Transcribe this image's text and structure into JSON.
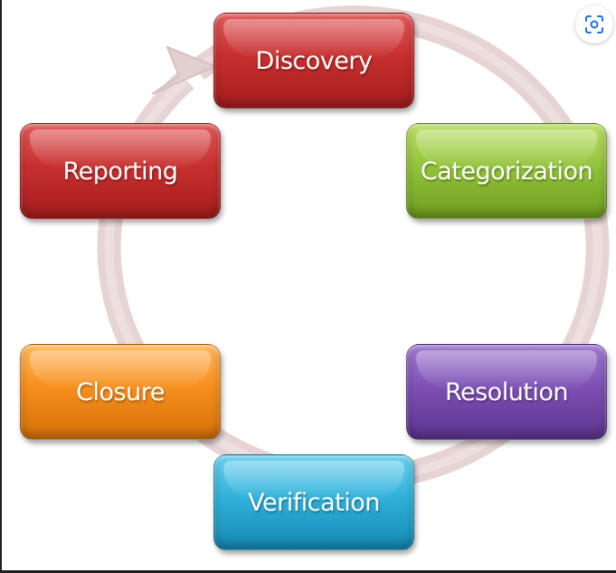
{
  "diagram": {
    "type": "cycle",
    "steps": [
      {
        "label": "Discovery",
        "color": "#c72f2f"
      },
      {
        "label": "Categorization",
        "color": "#93c33a"
      },
      {
        "label": "Resolution",
        "color": "#7d50b3"
      },
      {
        "label": "Verification",
        "color": "#2fb1da"
      },
      {
        "label": "Closure",
        "color": "#f68f1c"
      },
      {
        "label": "Reporting",
        "color": "#c72f2f"
      }
    ],
    "arrow_color": "#e8d6d6",
    "flow": "clockwise"
  },
  "overlay": {
    "icon": "visual-search-icon"
  }
}
